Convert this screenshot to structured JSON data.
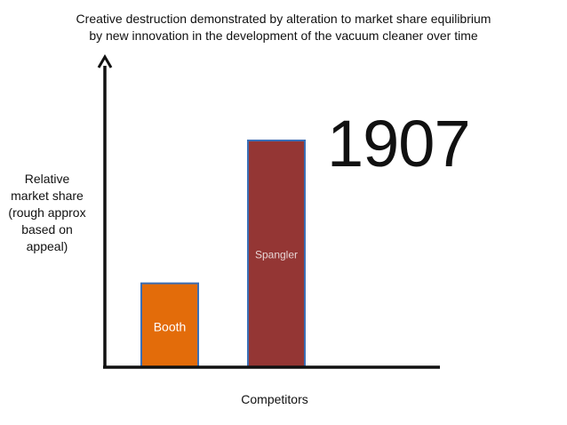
{
  "chart_data": {
    "type": "bar",
    "title": "Creative destruction demonstrated by alteration to market share equilibrium\nby new innovation in the development of the vacuum cleaner over time",
    "annotation": "1907",
    "xlabel": "Competitors",
    "ylabel": "Relative\nmarket share\n(rough approx\nbased on\nappeal)",
    "ylim": [
      0,
      100
    ],
    "grid": false,
    "y_axis_arrow": true,
    "series": [
      {
        "values": [
          37,
          100
        ],
        "colors": [
          "#E36C0A",
          "#943634"
        ],
        "border_color": "#3B6FB6"
      }
    ],
    "categories": [
      "Booth",
      "Spangler"
    ],
    "label_colors": [
      "#ffffff",
      "#e8d6d6"
    ]
  }
}
